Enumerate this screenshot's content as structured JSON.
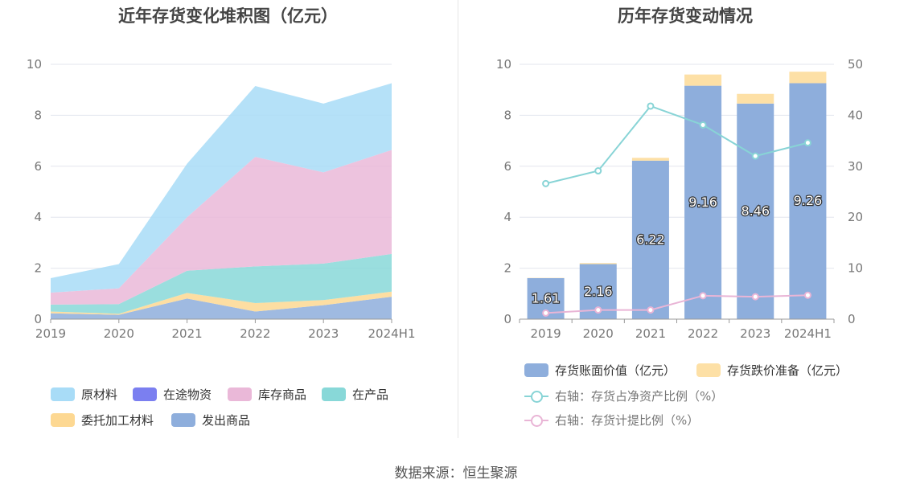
{
  "chart_data": [
    {
      "type": "area",
      "stacked": true,
      "title": "近年存货变化堆积图（亿元）",
      "categories": [
        "2019",
        "2020",
        "2021",
        "2022",
        "2023",
        "2024H1"
      ],
      "ylim": [
        0,
        10
      ],
      "yticks": [
        "0",
        "2",
        "4",
        "6",
        "8",
        "10"
      ],
      "grid": true,
      "legend_position": "bottom",
      "series": [
        {
          "name": "原材料",
          "color": "#a8dcf7",
          "values": [
            0.57,
            0.95,
            2.1,
            2.78,
            2.7,
            2.62
          ]
        },
        {
          "name": "在途物资",
          "color": "#7b7ff0",
          "values": [
            0,
            0,
            0,
            0,
            0,
            0
          ]
        },
        {
          "name": "库存商品",
          "color": "#eab8d8",
          "values": [
            0.47,
            0.62,
            2.1,
            4.3,
            3.58,
            4.08
          ]
        },
        {
          "name": "在产品",
          "color": "#88d8d8",
          "values": [
            0.27,
            0.38,
            0.87,
            1.44,
            1.43,
            1.48
          ]
        },
        {
          "name": "委托加工材料",
          "color": "#fdd892",
          "values": [
            0.07,
            0.04,
            0.22,
            0.33,
            0.2,
            0.2
          ]
        },
        {
          "name": "发出商品",
          "color": "#8eaedc",
          "values": [
            0.23,
            0.17,
            0.81,
            0.3,
            0.55,
            0.88
          ]
        }
      ]
    },
    {
      "type": "bar",
      "stacked": true,
      "title": "历年存货变动情况",
      "categories": [
        "2019",
        "2020",
        "2021",
        "2022",
        "2023",
        "2024H1"
      ],
      "ylim": [
        0,
        10
      ],
      "yticks": [
        "0",
        "2",
        "4",
        "6",
        "8",
        "10"
      ],
      "y2lim": [
        0,
        50
      ],
      "y2ticks": [
        "0",
        "10",
        "20",
        "30",
        "40",
        "50"
      ],
      "grid": true,
      "legend_position": "bottom",
      "series": [
        {
          "name": "存货账面价值（亿元）",
          "type": "bar",
          "color": "#8eaedc",
          "values": [
            1.61,
            2.16,
            6.22,
            9.16,
            8.46,
            9.26
          ],
          "labels": [
            "1.61",
            "2.16",
            "6.22",
            "9.16",
            "8.46",
            "9.26"
          ]
        },
        {
          "name": "存货跌价准备（亿元）",
          "type": "bar",
          "color": "#fde0a6",
          "values": [
            0.01,
            0.04,
            0.11,
            0.44,
            0.38,
            0.45
          ]
        },
        {
          "name": "右轴：存货占净资产比例（%）",
          "type": "line",
          "axis": "right",
          "color": "#88d4d6",
          "values": [
            26.6,
            29.1,
            41.8,
            38.1,
            32.0,
            34.6
          ]
        },
        {
          "name": "右轴：存货计提比例（%）",
          "type": "line",
          "axis": "right",
          "color": "#e9b5d6",
          "values": [
            1.2,
            1.8,
            1.8,
            4.6,
            4.4,
            4.7
          ]
        }
      ]
    }
  ],
  "source": "数据来源：恒生聚源"
}
